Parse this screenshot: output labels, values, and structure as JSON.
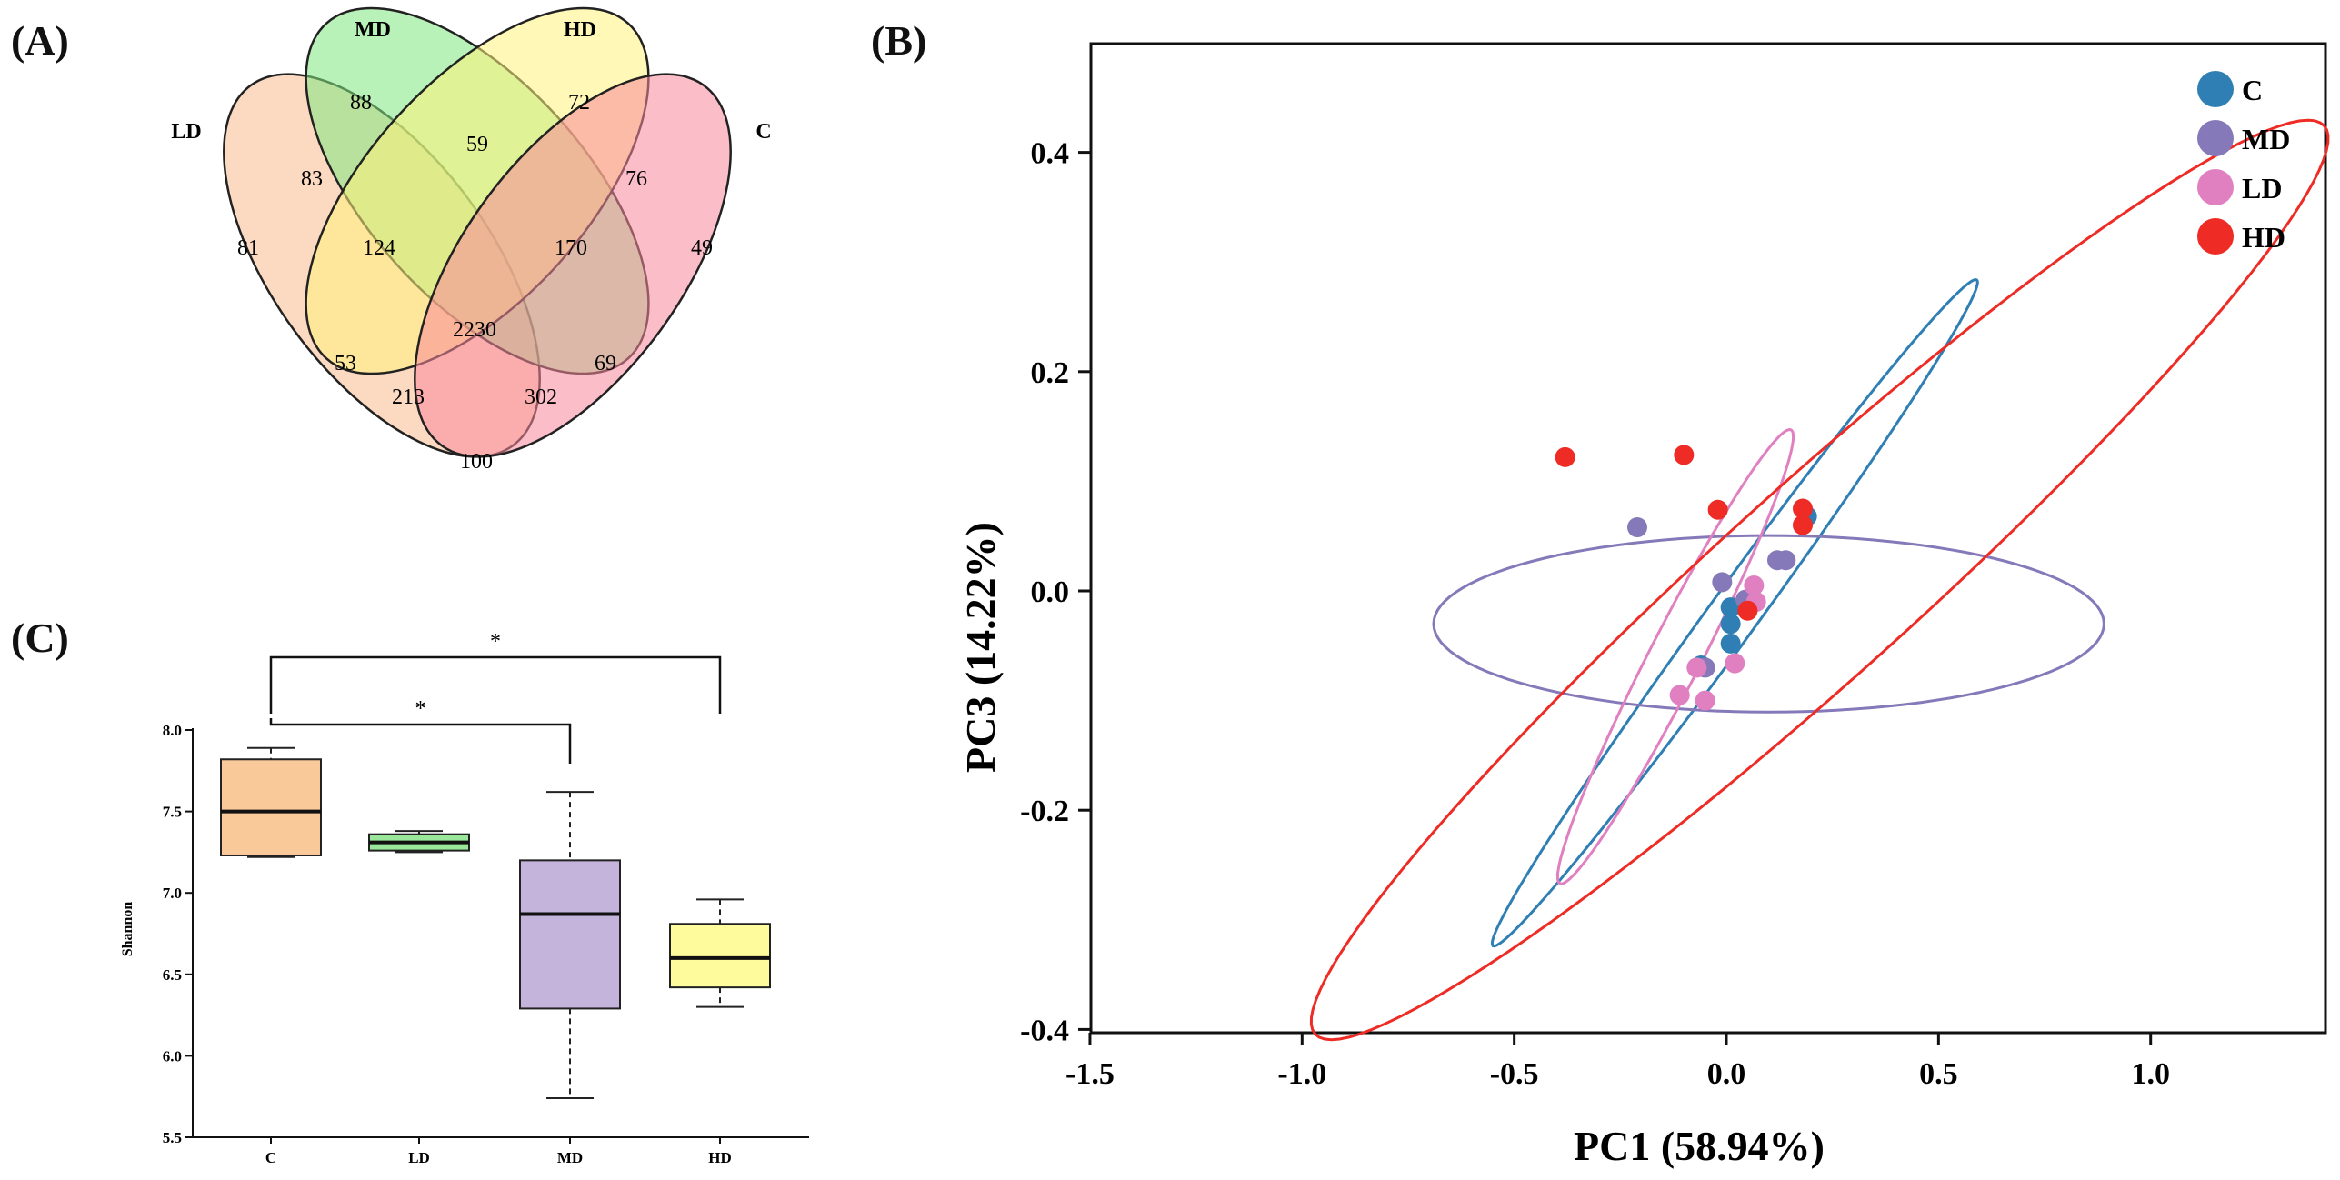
{
  "panels": {
    "A": "(A)",
    "B": "(B)",
    "C": "(C)"
  },
  "colors": {
    "C": "#2f7fb5",
    "MD": "#8579b9",
    "LD": "#e080c0",
    "HD": "#ee2b24"
  },
  "chart_data": [
    {
      "type": "venn",
      "panel": "(A)",
      "sets": [
        {
          "name": "LD",
          "color": "#f9b98e"
        },
        {
          "name": "MD",
          "color": "#7fe87f"
        },
        {
          "name": "HD",
          "color": "#fff27a"
        },
        {
          "name": "C",
          "color": "#f7889a"
        }
      ],
      "regions": [
        {
          "sets": [
            "MD"
          ],
          "value": 88
        },
        {
          "sets": [
            "HD"
          ],
          "value": 72
        },
        {
          "sets": [
            "LD"
          ],
          "value": 81
        },
        {
          "sets": [
            "C"
          ],
          "value": 49
        },
        {
          "sets": [
            "MD",
            "HD"
          ],
          "value": 59
        },
        {
          "sets": [
            "LD",
            "MD"
          ],
          "value": 83
        },
        {
          "sets": [
            "HD",
            "C"
          ],
          "value": 76
        },
        {
          "sets": [
            "LD",
            "MD",
            "HD"
          ],
          "value": 124
        },
        {
          "sets": [
            "MD",
            "HD",
            "C"
          ],
          "value": 170
        },
        {
          "sets": [
            "LD",
            "MD",
            "HD",
            "C"
          ],
          "value": 2230
        },
        {
          "sets": [
            "LD",
            "HD"
          ],
          "value": 53
        },
        {
          "sets": [
            "MD",
            "C"
          ],
          "value": 69
        },
        {
          "sets": [
            "LD",
            "HD",
            "C"
          ],
          "value": 213
        },
        {
          "sets": [
            "LD",
            "MD",
            "C"
          ],
          "value": 302
        },
        {
          "sets": [
            "LD",
            "C"
          ],
          "value": 100
        }
      ]
    },
    {
      "type": "scatter",
      "panel": "(B)",
      "xlabel": "PC1 (58.94%)",
      "ylabel": "PC3 (14.22%)",
      "xlim": [
        -1.5,
        1.5
      ],
      "ylim": [
        -0.4,
        0.5
      ],
      "xticks": [
        "-1.5",
        "-1.0",
        "-0.5",
        "0.0",
        "0.5",
        "1.0"
      ],
      "yticks": [
        "-0.4",
        "-0.2",
        "0.0",
        "0.2",
        "0.4"
      ],
      "legend": {
        "position": "top-right",
        "entries": [
          "C",
          "MD",
          "LD",
          "HD"
        ]
      },
      "series": [
        {
          "name": "C",
          "color": "#2f7fb5",
          "points": [
            [
              0.01,
              -0.015
            ],
            [
              0.01,
              -0.03
            ],
            [
              0.01,
              -0.048
            ],
            [
              -0.06,
              -0.068
            ],
            [
              0.19,
              0.068
            ]
          ],
          "ellipse": {
            "center": [
              0.02,
              -0.02
            ],
            "semi_major": 0.97,
            "semi_minor": 0.058,
            "angle_deg": 54
          }
        },
        {
          "name": "MD",
          "color": "#8579b9",
          "points": [
            [
              -0.21,
              0.058
            ],
            [
              0.12,
              0.028
            ],
            [
              0.14,
              0.028
            ],
            [
              0.045,
              -0.008
            ],
            [
              -0.01,
              0.008
            ],
            [
              -0.05,
              -0.07
            ]
          ],
          "ellipse": {
            "center": [
              0.1,
              -0.03
            ],
            "semi_major": 0.79,
            "semi_minor": 0.208,
            "angle_deg": 0
          }
        },
        {
          "name": "LD",
          "color": "#e080c0",
          "points": [
            [
              -0.11,
              -0.095
            ],
            [
              -0.05,
              -0.1
            ],
            [
              -0.07,
              -0.07
            ],
            [
              0.02,
              -0.066
            ],
            [
              0.065,
              0.005
            ],
            [
              0.07,
              -0.01
            ]
          ],
          "ellipse": {
            "center": [
              -0.12,
              -0.06
            ],
            "semi_major": 0.6,
            "semi_minor": 0.061,
            "angle_deg": 63
          }
        },
        {
          "name": "HD",
          "color": "#ee2b24",
          "points": [
            [
              -0.38,
              0.122
            ],
            [
              -0.1,
              0.124
            ],
            [
              -0.02,
              0.074
            ],
            [
              0.18,
              0.075
            ],
            [
              0.18,
              0.06
            ],
            [
              0.05,
              -0.018
            ]
          ],
          "ellipse": {
            "center": [
              0.22,
              0.01
            ],
            "semi_major": 1.6,
            "semi_minor": 0.226,
            "angle_deg": 42
          }
        }
      ]
    },
    {
      "type": "box",
      "panel": "(C)",
      "ylabel": "Shannon",
      "ylim": [
        5.5,
        8.0
      ],
      "yticks": [
        "5.5",
        "6.0",
        "6.5",
        "7.0",
        "7.5",
        "8.0"
      ],
      "categories": [
        "C",
        "LD",
        "MD",
        "HD"
      ],
      "boxes": [
        {
          "name": "C",
          "color": "#f9c99a",
          "min": 7.22,
          "q1": 7.23,
          "median": 7.5,
          "q3": 7.82,
          "max": 7.89
        },
        {
          "name": "LD",
          "color": "#9ae69a",
          "min": 7.25,
          "q1": 7.26,
          "median": 7.31,
          "q3": 7.36,
          "max": 7.38
        },
        {
          "name": "MD",
          "color": "#c4b3da",
          "min": 5.74,
          "q1": 6.29,
          "median": 6.87,
          "q3": 7.2,
          "max": 7.62
        },
        {
          "name": "HD",
          "color": "#fefb9c",
          "min": 6.3,
          "q1": 6.42,
          "median": 6.6,
          "q3": 6.81,
          "max": 6.96
        }
      ],
      "significance": [
        {
          "from": "C",
          "to": "MD",
          "label": "*"
        },
        {
          "from": "C",
          "to": "HD",
          "label": "*"
        }
      ]
    }
  ]
}
